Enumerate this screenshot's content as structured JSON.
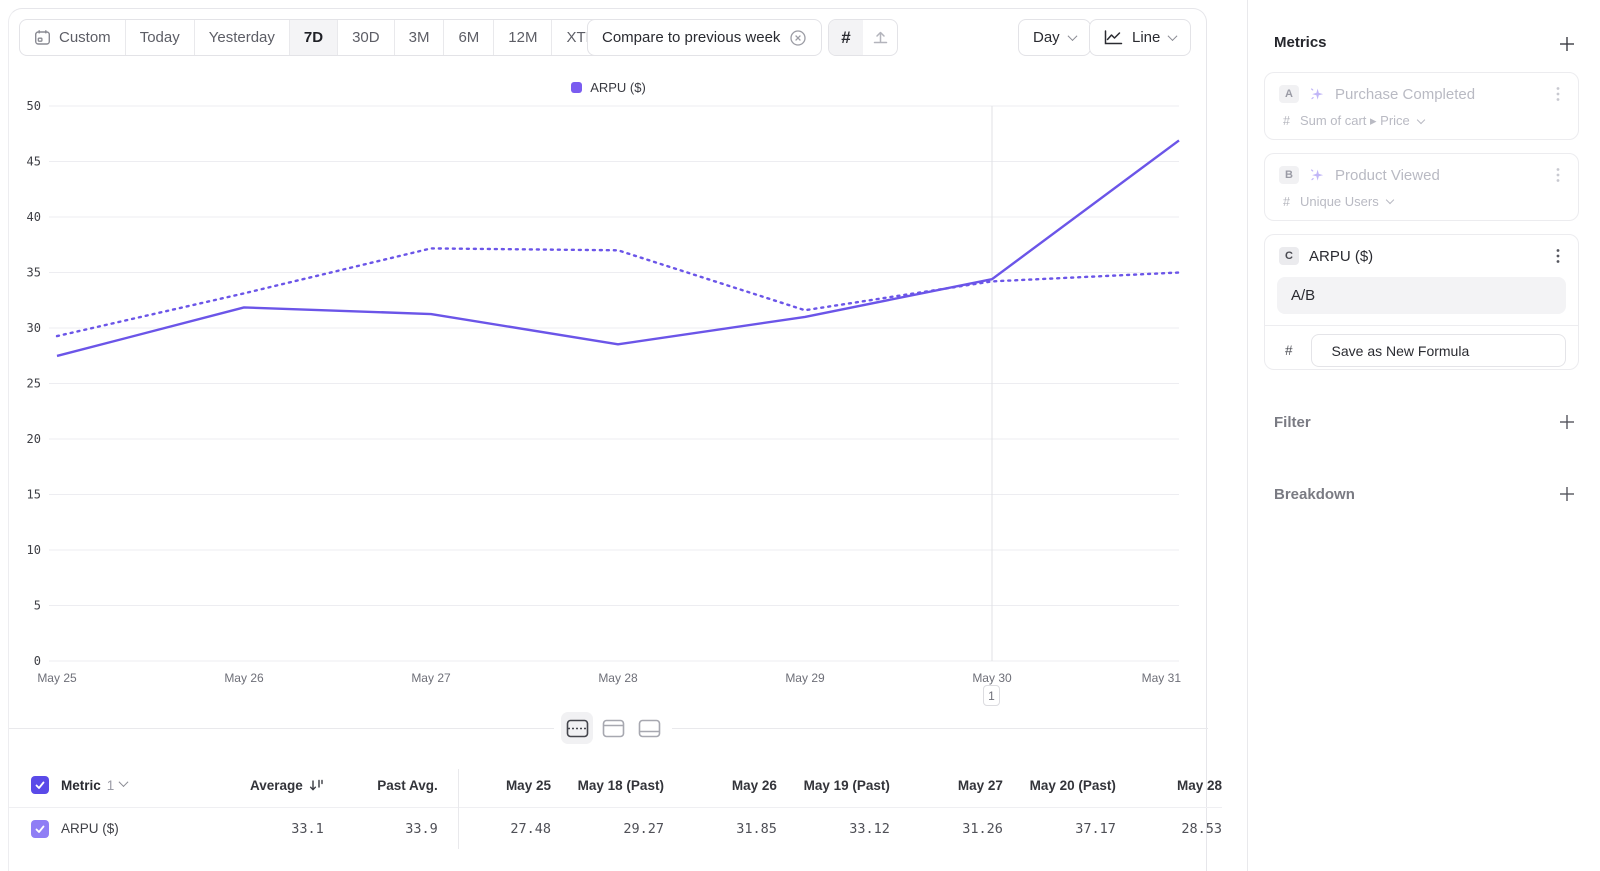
{
  "toolbar": {
    "date_ranges": [
      "Custom",
      "Today",
      "Yesterday",
      "7D",
      "30D",
      "3M",
      "6M",
      "12M",
      "XTD"
    ],
    "selected_range": "7D",
    "compare_label": "Compare to previous week",
    "granularity_label": "Day",
    "chart_type_label": "Line",
    "hash_icon": "#"
  },
  "chart_data": {
    "type": "line",
    "legend_label": "ARPU ($)",
    "legend_color": "#7a5cf0",
    "legend_position": "top-center",
    "grid": true,
    "x": [
      "May 25",
      "May 26",
      "May 27",
      "May 28",
      "May 29",
      "May 30",
      "May 31"
    ],
    "ylim": [
      0,
      50
    ],
    "ytick_step": 5,
    "series": [
      {
        "name": "ARPU ($)",
        "style": "solid",
        "color": "#6b55e8",
        "values": [
          27.48,
          31.85,
          31.26,
          28.53,
          31.0,
          34.4,
          46.9
        ]
      },
      {
        "name": "ARPU ($) previous week",
        "style": "dotted",
        "color": "#6b55e8",
        "values": [
          29.27,
          33.12,
          37.17,
          37.0,
          31.6,
          34.2,
          35.0
        ]
      }
    ],
    "annotation": {
      "x": "May 30",
      "label": "1"
    }
  },
  "table": {
    "metric_label": "Metric",
    "metric_count": "1",
    "columns": [
      "Average",
      "Past Avg.",
      "May 25",
      "May 18 (Past)",
      "May 26",
      "May 19 (Past)",
      "May 27",
      "May 20 (Past)",
      "May 28"
    ],
    "rows": [
      {
        "label": "ARPU ($)",
        "values": [
          "33.1",
          "33.9",
          "27.48",
          "29.27",
          "31.85",
          "33.12",
          "31.26",
          "37.17",
          "28.53"
        ]
      }
    ]
  },
  "panel": {
    "metrics_title": "Metrics",
    "hash_symbol": "#",
    "cards": [
      {
        "letter": "A",
        "title": "Purchase Completed",
        "measure": "Sum of cart ▸ Price"
      },
      {
        "letter": "B",
        "title": "Product Viewed",
        "measure": "Unique Users"
      },
      {
        "letter": "C",
        "title": "ARPU ($)",
        "formula": "A/B",
        "action": "Save as New Formula"
      }
    ],
    "filter_title": "Filter",
    "breakdown_title": "Breakdown"
  }
}
